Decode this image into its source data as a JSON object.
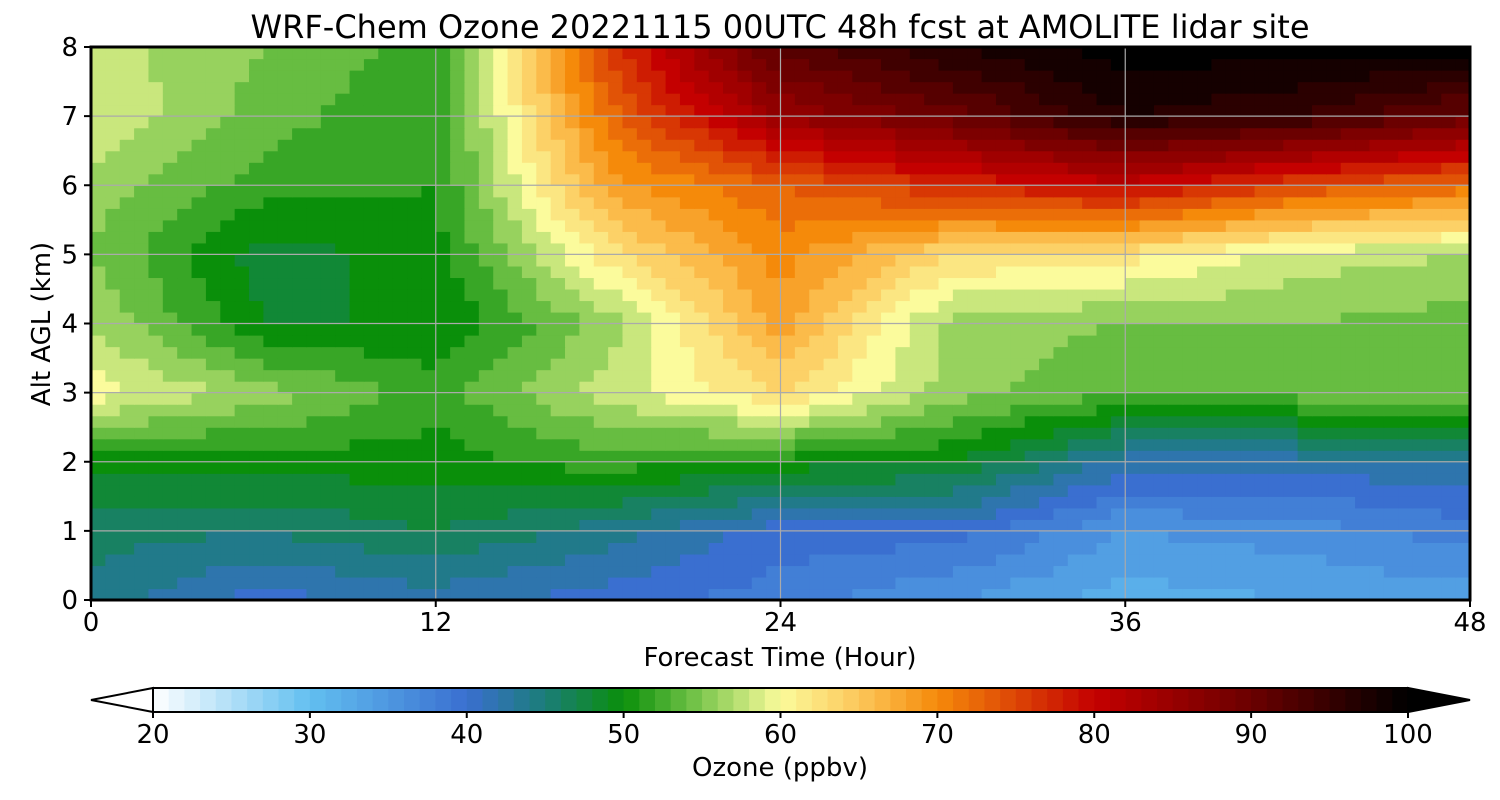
{
  "chart_data": {
    "type": "heatmap",
    "title": "WRF-Chem Ozone  20221115 00UTC 48h fcst at AMOLITE lidar site",
    "xlabel": "Forecast Time (Hour)",
    "ylabel": "Alt AGL (km)",
    "xlim": [
      0,
      48
    ],
    "ylim": [
      0,
      8
    ],
    "xticks": [
      0,
      12,
      24,
      36,
      48
    ],
    "yticks": [
      0,
      1,
      2,
      3,
      4,
      5,
      6,
      7,
      8
    ],
    "grid": true,
    "x": [
      0,
      6,
      12,
      18,
      24,
      30,
      36,
      42,
      48
    ],
    "y": [
      0,
      1,
      2,
      3,
      4,
      5,
      6,
      7,
      8
    ],
    "z": [
      [
        44,
        40,
        42,
        40,
        38,
        35,
        32,
        33,
        34
      ],
      [
        46,
        45,
        47,
        44,
        40,
        40,
        35,
        36,
        38
      ],
      [
        50,
        50,
        50,
        52,
        50,
        49,
        42,
        42,
        43
      ],
      [
        60,
        56,
        52,
        58,
        63,
        56,
        53,
        54,
        55
      ],
      [
        57,
        49,
        49,
        56,
        68,
        56,
        55,
        55,
        54
      ],
      [
        55,
        48,
        50,
        62,
        70,
        63,
        62,
        58,
        57
      ],
      [
        56,
        52,
        51,
        68,
        73,
        77,
        80,
        75,
        72
      ],
      [
        59,
        54,
        51,
        72,
        85,
        90,
        97,
        95,
        90
      ],
      [
        58,
        55,
        52,
        76,
        92,
        97,
        100,
        100,
        100
      ]
    ],
    "colorbar": {
      "label": "Ozone  (ppbv)",
      "min": 20,
      "max": 100,
      "ticks": [
        20,
        30,
        40,
        50,
        60,
        70,
        80,
        90,
        100
      ],
      "extend": "both"
    },
    "colormap_stops": [
      {
        "v": 20,
        "c": "#ffffff"
      },
      {
        "v": 30,
        "c": "#62bff0"
      },
      {
        "v": 40,
        "c": "#3a6fd0"
      },
      {
        "v": 45,
        "c": "#1b7d78"
      },
      {
        "v": 50,
        "c": "#0a8f0a"
      },
      {
        "v": 55,
        "c": "#7ec84f"
      },
      {
        "v": 60,
        "c": "#fbfb9c"
      },
      {
        "v": 65,
        "c": "#fcc75a"
      },
      {
        "v": 70,
        "c": "#f58a0a"
      },
      {
        "v": 80,
        "c": "#c40000"
      },
      {
        "v": 90,
        "c": "#6b0000"
      },
      {
        "v": 100,
        "c": "#000000"
      }
    ]
  }
}
